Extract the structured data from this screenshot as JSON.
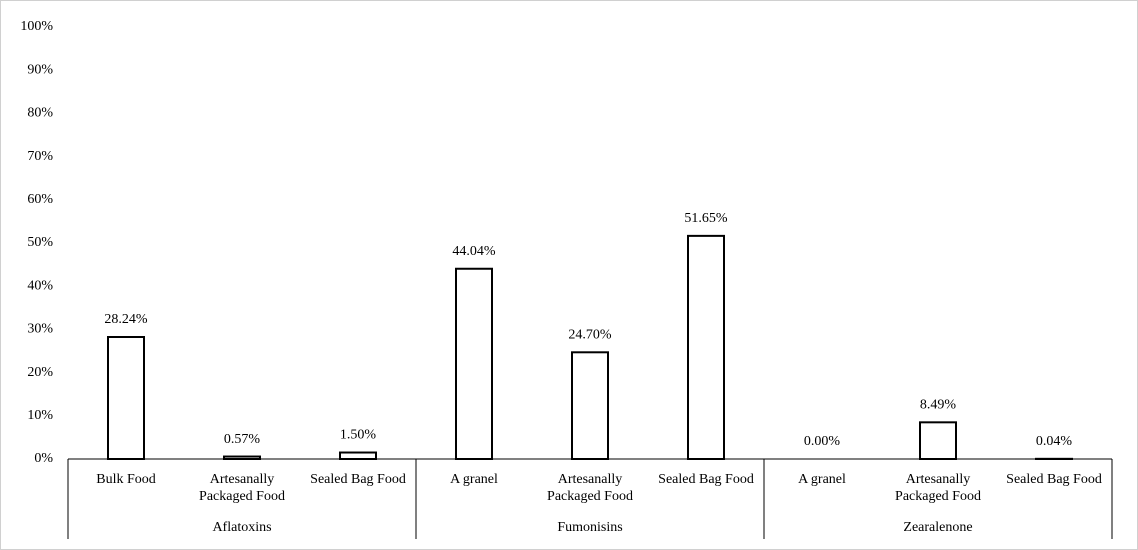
{
  "chart_data": {
    "type": "bar",
    "groups": [
      {
        "name": "Aflatoxins",
        "categories": [
          "Bulk Food",
          "Artesanally Packaged Food",
          "Sealed Bag Food"
        ],
        "values": [
          28.24,
          0.57,
          1.5
        ],
        "value_labels": [
          "28.24%",
          "0.57%",
          "1.50%"
        ]
      },
      {
        "name": "Fumonisins",
        "categories": [
          "A granel",
          "Artesanally Packaged Food",
          "Sealed Bag Food"
        ],
        "values": [
          44.04,
          24.7,
          51.65
        ],
        "value_labels": [
          "44.04%",
          "24.70%",
          "51.65%"
        ]
      },
      {
        "name": "Zearalenone",
        "categories": [
          "A granel",
          "Artesanally Packaged Food",
          "Sealed Bag Food"
        ],
        "values": [
          0.0,
          8.49,
          0.04
        ],
        "value_labels": [
          "0.00%",
          "8.49%",
          "0.04%"
        ]
      }
    ],
    "color": "#ffffff",
    "edge_color": "#000000",
    "ylim": [
      0,
      100
    ],
    "yticks": [
      {
        "value": 0,
        "label": "0%"
      },
      {
        "value": 10,
        "label": "10%"
      },
      {
        "value": 20,
        "label": "20%"
      },
      {
        "value": 30,
        "label": "30%"
      },
      {
        "value": 40,
        "label": "40%"
      },
      {
        "value": 50,
        "label": "50%"
      },
      {
        "value": 60,
        "label": "60%"
      },
      {
        "value": 70,
        "label": "70%"
      },
      {
        "value": 80,
        "label": "80%"
      },
      {
        "value": 90,
        "label": "90%"
      },
      {
        "value": 100,
        "label": "100%"
      }
    ],
    "grid": false
  }
}
